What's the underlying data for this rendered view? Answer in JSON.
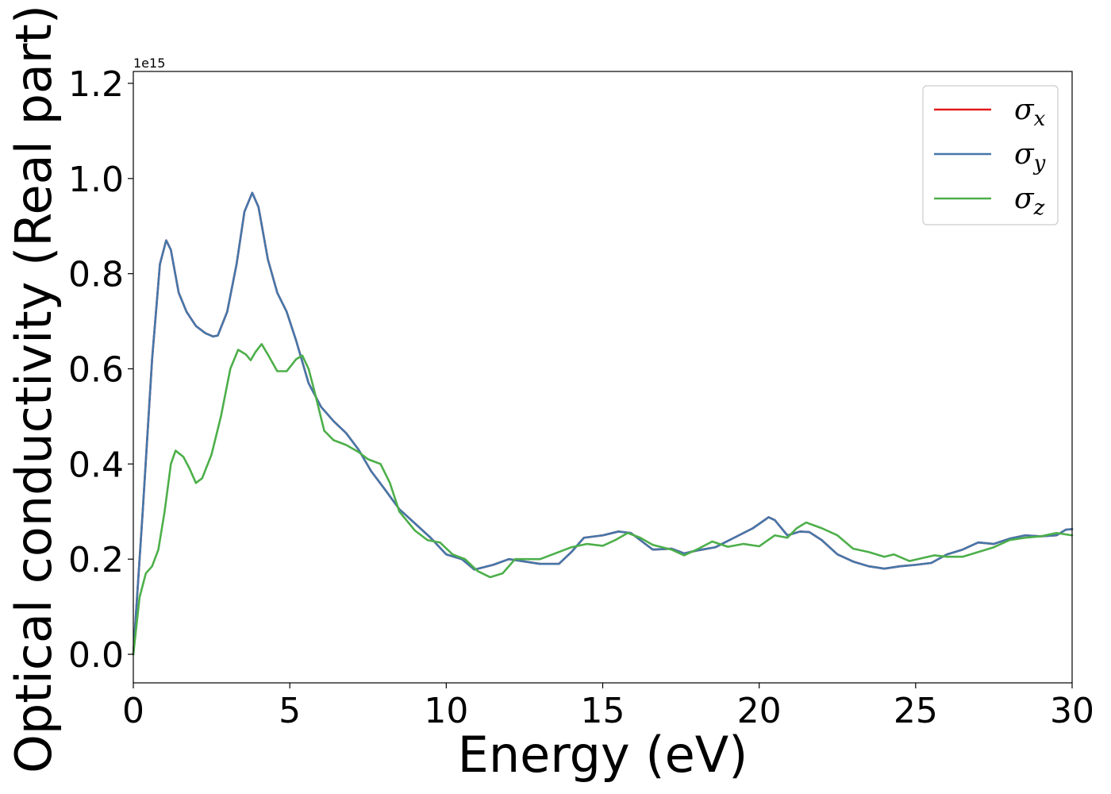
{
  "chart_data": {
    "type": "line",
    "title": "",
    "xlabel": "Energy (eV)",
    "ylabel": "Optical conductivity (Real part)",
    "y_offset_text": "1e15",
    "xlim": [
      0,
      30
    ],
    "ylim": [
      -0.06,
      1.225
    ],
    "x_ticks": [
      0,
      5,
      10,
      15,
      20,
      25,
      30
    ],
    "x_tick_labels": [
      "0",
      "5",
      "10",
      "15",
      "20",
      "25",
      "30"
    ],
    "y_ticks": [
      0.0,
      0.2,
      0.4,
      0.6,
      0.8,
      1.0,
      1.2
    ],
    "y_tick_labels": [
      "0.0",
      "0.2",
      "0.4",
      "0.6",
      "0.8",
      "1.0",
      "1.2"
    ],
    "grid": false,
    "legend_position": "top-right",
    "series": [
      {
        "name": "σ",
        "sub": "x",
        "color": "#e41a1c",
        "points": [
          [
            0,
            0
          ],
          [
            0.3,
            0.3
          ],
          [
            0.6,
            0.62
          ],
          [
            0.85,
            0.82
          ],
          [
            1.05,
            0.87
          ],
          [
            1.2,
            0.85
          ],
          [
            1.45,
            0.76
          ],
          [
            1.7,
            0.72
          ],
          [
            2.0,
            0.69
          ],
          [
            2.3,
            0.675
          ],
          [
            2.55,
            0.668
          ],
          [
            2.7,
            0.67
          ],
          [
            3.0,
            0.72
          ],
          [
            3.3,
            0.82
          ],
          [
            3.55,
            0.93
          ],
          [
            3.8,
            0.97
          ],
          [
            4.0,
            0.94
          ],
          [
            4.3,
            0.83
          ],
          [
            4.6,
            0.76
          ],
          [
            4.9,
            0.72
          ],
          [
            5.2,
            0.66
          ],
          [
            5.6,
            0.57
          ],
          [
            6.0,
            0.52
          ],
          [
            6.4,
            0.49
          ],
          [
            6.8,
            0.465
          ],
          [
            7.2,
            0.43
          ],
          [
            7.6,
            0.385
          ],
          [
            8.0,
            0.35
          ],
          [
            8.5,
            0.305
          ],
          [
            9.0,
            0.275
          ],
          [
            9.5,
            0.245
          ],
          [
            10.0,
            0.21
          ],
          [
            10.5,
            0.2
          ],
          [
            10.9,
            0.178
          ],
          [
            11.5,
            0.188
          ],
          [
            12.0,
            0.2
          ],
          [
            12.5,
            0.195
          ],
          [
            13.0,
            0.19
          ],
          [
            13.6,
            0.19
          ],
          [
            14.0,
            0.215
          ],
          [
            14.4,
            0.245
          ],
          [
            15.0,
            0.25
          ],
          [
            15.5,
            0.258
          ],
          [
            15.9,
            0.255
          ],
          [
            16.2,
            0.24
          ],
          [
            16.6,
            0.22
          ],
          [
            17.2,
            0.222
          ],
          [
            17.6,
            0.212
          ],
          [
            18.0,
            0.218
          ],
          [
            18.6,
            0.225
          ],
          [
            19.2,
            0.245
          ],
          [
            19.8,
            0.265
          ],
          [
            20.3,
            0.288
          ],
          [
            20.5,
            0.282
          ],
          [
            20.9,
            0.25
          ],
          [
            21.3,
            0.258
          ],
          [
            21.6,
            0.257
          ],
          [
            22.0,
            0.24
          ],
          [
            22.5,
            0.21
          ],
          [
            23.0,
            0.195
          ],
          [
            23.5,
            0.185
          ],
          [
            24.0,
            0.18
          ],
          [
            24.5,
            0.185
          ],
          [
            25.0,
            0.188
          ],
          [
            25.5,
            0.192
          ],
          [
            26.0,
            0.21
          ],
          [
            26.5,
            0.22
          ],
          [
            27.0,
            0.235
          ],
          [
            27.5,
            0.232
          ],
          [
            28.0,
            0.243
          ],
          [
            28.5,
            0.25
          ],
          [
            29.0,
            0.248
          ],
          [
            29.5,
            0.25
          ],
          [
            29.8,
            0.262
          ],
          [
            30.0,
            0.263
          ]
        ]
      },
      {
        "name": "σ",
        "sub": "y",
        "color": "#4477aa",
        "points": [
          [
            0,
            0
          ],
          [
            0.3,
            0.3
          ],
          [
            0.6,
            0.62
          ],
          [
            0.85,
            0.82
          ],
          [
            1.05,
            0.87
          ],
          [
            1.2,
            0.85
          ],
          [
            1.45,
            0.76
          ],
          [
            1.7,
            0.72
          ],
          [
            2.0,
            0.69
          ],
          [
            2.3,
            0.675
          ],
          [
            2.55,
            0.668
          ],
          [
            2.7,
            0.67
          ],
          [
            3.0,
            0.72
          ],
          [
            3.3,
            0.82
          ],
          [
            3.55,
            0.93
          ],
          [
            3.8,
            0.97
          ],
          [
            4.0,
            0.94
          ],
          [
            4.3,
            0.83
          ],
          [
            4.6,
            0.76
          ],
          [
            4.9,
            0.72
          ],
          [
            5.2,
            0.66
          ],
          [
            5.6,
            0.57
          ],
          [
            6.0,
            0.52
          ],
          [
            6.4,
            0.49
          ],
          [
            6.8,
            0.465
          ],
          [
            7.2,
            0.43
          ],
          [
            7.6,
            0.385
          ],
          [
            8.0,
            0.35
          ],
          [
            8.5,
            0.305
          ],
          [
            9.0,
            0.275
          ],
          [
            9.5,
            0.245
          ],
          [
            10.0,
            0.21
          ],
          [
            10.5,
            0.2
          ],
          [
            10.9,
            0.178
          ],
          [
            11.5,
            0.188
          ],
          [
            12.0,
            0.2
          ],
          [
            12.5,
            0.195
          ],
          [
            13.0,
            0.19
          ],
          [
            13.6,
            0.19
          ],
          [
            14.0,
            0.215
          ],
          [
            14.4,
            0.245
          ],
          [
            15.0,
            0.25
          ],
          [
            15.5,
            0.258
          ],
          [
            15.9,
            0.255
          ],
          [
            16.2,
            0.24
          ],
          [
            16.6,
            0.22
          ],
          [
            17.2,
            0.222
          ],
          [
            17.6,
            0.212
          ],
          [
            18.0,
            0.218
          ],
          [
            18.6,
            0.225
          ],
          [
            19.2,
            0.245
          ],
          [
            19.8,
            0.265
          ],
          [
            20.3,
            0.288
          ],
          [
            20.5,
            0.282
          ],
          [
            20.9,
            0.25
          ],
          [
            21.3,
            0.258
          ],
          [
            21.6,
            0.257
          ],
          [
            22.0,
            0.24
          ],
          [
            22.5,
            0.21
          ],
          [
            23.0,
            0.195
          ],
          [
            23.5,
            0.185
          ],
          [
            24.0,
            0.18
          ],
          [
            24.5,
            0.185
          ],
          [
            25.0,
            0.188
          ],
          [
            25.5,
            0.192
          ],
          [
            26.0,
            0.21
          ],
          [
            26.5,
            0.22
          ],
          [
            27.0,
            0.235
          ],
          [
            27.5,
            0.232
          ],
          [
            28.0,
            0.243
          ],
          [
            28.5,
            0.25
          ],
          [
            29.0,
            0.248
          ],
          [
            29.5,
            0.25
          ],
          [
            29.8,
            0.262
          ],
          [
            30.0,
            0.263
          ]
        ]
      },
      {
        "name": "σ",
        "sub": "z",
        "color": "#4daf4a",
        "points": [
          [
            0,
            0
          ],
          [
            0.2,
            0.12
          ],
          [
            0.4,
            0.17
          ],
          [
            0.6,
            0.185
          ],
          [
            0.8,
            0.22
          ],
          [
            1.0,
            0.3
          ],
          [
            1.2,
            0.4
          ],
          [
            1.35,
            0.428
          ],
          [
            1.6,
            0.415
          ],
          [
            1.8,
            0.39
          ],
          [
            2.0,
            0.36
          ],
          [
            2.2,
            0.37
          ],
          [
            2.5,
            0.42
          ],
          [
            2.8,
            0.5
          ],
          [
            3.1,
            0.6
          ],
          [
            3.35,
            0.64
          ],
          [
            3.6,
            0.63
          ],
          [
            3.75,
            0.618
          ],
          [
            3.9,
            0.635
          ],
          [
            4.1,
            0.652
          ],
          [
            4.3,
            0.63
          ],
          [
            4.6,
            0.595
          ],
          [
            4.9,
            0.595
          ],
          [
            5.2,
            0.62
          ],
          [
            5.4,
            0.628
          ],
          [
            5.6,
            0.6
          ],
          [
            5.8,
            0.55
          ],
          [
            6.1,
            0.47
          ],
          [
            6.4,
            0.45
          ],
          [
            6.8,
            0.44
          ],
          [
            7.2,
            0.425
          ],
          [
            7.5,
            0.41
          ],
          [
            7.9,
            0.4
          ],
          [
            8.2,
            0.36
          ],
          [
            8.5,
            0.3
          ],
          [
            9.0,
            0.26
          ],
          [
            9.4,
            0.24
          ],
          [
            9.8,
            0.235
          ],
          [
            10.2,
            0.21
          ],
          [
            10.6,
            0.2
          ],
          [
            11.0,
            0.175
          ],
          [
            11.4,
            0.162
          ],
          [
            11.8,
            0.17
          ],
          [
            12.2,
            0.2
          ],
          [
            12.6,
            0.2
          ],
          [
            13.0,
            0.2
          ],
          [
            13.4,
            0.21
          ],
          [
            14.0,
            0.225
          ],
          [
            14.5,
            0.232
          ],
          [
            15.0,
            0.228
          ],
          [
            15.4,
            0.24
          ],
          [
            15.8,
            0.255
          ],
          [
            16.2,
            0.245
          ],
          [
            16.6,
            0.23
          ],
          [
            17.2,
            0.22
          ],
          [
            17.6,
            0.208
          ],
          [
            18.0,
            0.22
          ],
          [
            18.5,
            0.237
          ],
          [
            19.0,
            0.226
          ],
          [
            19.5,
            0.232
          ],
          [
            20.0,
            0.227
          ],
          [
            20.5,
            0.25
          ],
          [
            20.9,
            0.245
          ],
          [
            21.2,
            0.265
          ],
          [
            21.5,
            0.277
          ],
          [
            22.0,
            0.265
          ],
          [
            22.5,
            0.25
          ],
          [
            23.0,
            0.222
          ],
          [
            23.5,
            0.215
          ],
          [
            24.0,
            0.205
          ],
          [
            24.3,
            0.21
          ],
          [
            24.8,
            0.196
          ],
          [
            25.2,
            0.202
          ],
          [
            25.6,
            0.208
          ],
          [
            26.0,
            0.205
          ],
          [
            26.5,
            0.205
          ],
          [
            27.0,
            0.215
          ],
          [
            27.5,
            0.225
          ],
          [
            28.0,
            0.24
          ],
          [
            28.5,
            0.245
          ],
          [
            29.0,
            0.248
          ],
          [
            29.5,
            0.255
          ],
          [
            30.0,
            0.25
          ]
        ]
      }
    ]
  }
}
